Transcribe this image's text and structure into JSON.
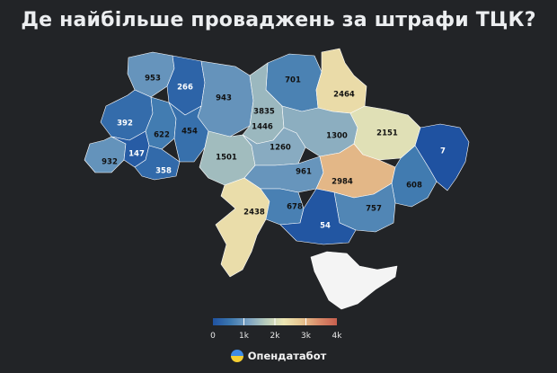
{
  "title": "Де найбільше проваджень за штрафи ТЦК?",
  "legend": {
    "tick_labels": [
      "0",
      "1k",
      "2k",
      "3k",
      "4k"
    ],
    "min": 0,
    "max": 4000,
    "color_stops": [
      "#1f52a1",
      "#3d78af",
      "#7ba2c2",
      "#b8ccbc",
      "#ece6b4",
      "#e6c48f",
      "#d98b6a",
      "#c75f4e"
    ]
  },
  "regions": [
    {
      "name": "Volyn",
      "value": 953
    },
    {
      "name": "Rivne",
      "value": 266
    },
    {
      "name": "Zhytomyr",
      "value": 943
    },
    {
      "name": "Kyiv city",
      "value": 3835
    },
    {
      "name": "Chernihiv",
      "value": 701
    },
    {
      "name": "Sumy",
      "value": 2464
    },
    {
      "name": "Lviv",
      "value": 392
    },
    {
      "name": "Ternopil",
      "value": 622
    },
    {
      "name": "Khmelnytskyi",
      "value": 454
    },
    {
      "name": "Kyiv oblast",
      "value": 1446
    },
    {
      "name": "Poltava",
      "value": 1300
    },
    {
      "name": "Kharkiv",
      "value": 2151
    },
    {
      "name": "Luhansk",
      "value": 7
    },
    {
      "name": "Zakarpattia",
      "value": 932
    },
    {
      "name": "Ivano-Frankivsk",
      "value": 147
    },
    {
      "name": "Chernivtsi",
      "value": 358
    },
    {
      "name": "Vinnytsia",
      "value": 1501
    },
    {
      "name": "Cherkasy",
      "value": 1260
    },
    {
      "name": "Kirovohrad",
      "value": 961
    },
    {
      "name": "Dnipropetrovsk",
      "value": 2984
    },
    {
      "name": "Donetsk",
      "value": 608
    },
    {
      "name": "Odesa",
      "value": 2438
    },
    {
      "name": "Mykolaiv",
      "value": 678
    },
    {
      "name": "Zaporizhzhia",
      "value": 757
    },
    {
      "name": "Kherson",
      "value": 54
    },
    {
      "name": "Crimea",
      "value": null
    }
  ],
  "no_data_color": "#f4f4f4",
  "brand": {
    "name": "Опендатабот",
    "icon": "opendatabot-logo-icon"
  }
}
